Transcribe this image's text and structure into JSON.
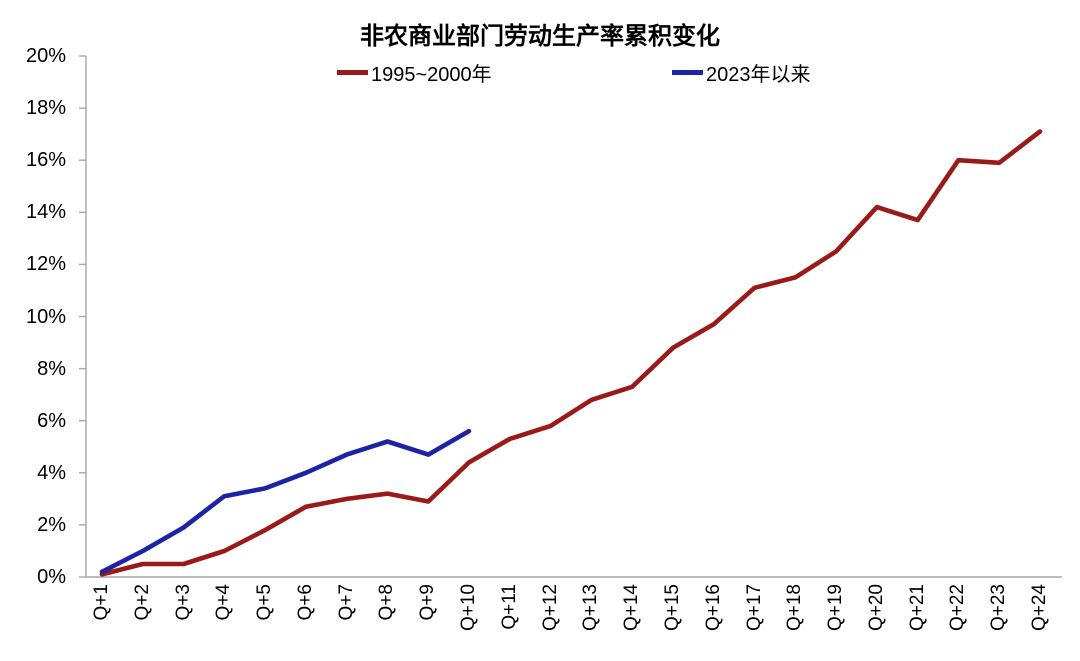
{
  "title": "非农商业部门劳动生产率累积变化",
  "legend": [
    {
      "label": "1995~2000年",
      "color": "#9a1a1a"
    },
    {
      "label": "2023年以来",
      "color": "#1c23a5"
    }
  ],
  "chart_data": {
    "type": "line",
    "title": "非农商业部门劳动生产率累积变化",
    "categories": [
      "Q+1",
      "Q+2",
      "Q+3",
      "Q+4",
      "Q+5",
      "Q+6",
      "Q+7",
      "Q+8",
      "Q+9",
      "Q+10",
      "Q+11",
      "Q+12",
      "Q+13",
      "Q+14",
      "Q+15",
      "Q+16",
      "Q+17",
      "Q+18",
      "Q+19",
      "Q+20",
      "Q+21",
      "Q+22",
      "Q+23",
      "Q+24"
    ],
    "series": [
      {
        "name": "1995~2000年",
        "color": "#9a1a1a",
        "values": [
          0.1,
          0.5,
          0.5,
          1.0,
          1.8,
          2.7,
          3.0,
          3.2,
          2.9,
          4.4,
          5.3,
          5.8,
          6.8,
          7.3,
          8.8,
          9.7,
          11.1,
          11.5,
          12.5,
          14.2,
          13.7,
          16.0,
          15.9,
          17.1
        ]
      },
      {
        "name": "2023年以来",
        "color": "#1c23a5",
        "values": [
          0.2,
          1.0,
          1.9,
          3.1,
          3.4,
          4.0,
          4.7,
          5.2,
          4.7,
          5.6
        ]
      }
    ],
    "xlabel": "",
    "ylabel": "",
    "ylim": [
      0,
      20
    ],
    "ytick_step": 2,
    "ytick_labels": [
      "0%",
      "2%",
      "4%",
      "6%",
      "8%",
      "10%",
      "12%",
      "14%",
      "16%",
      "18%",
      "20%"
    ],
    "x_tick_rotation_deg": 90,
    "grid": false,
    "legend_position": "top",
    "axis_color": "#a6a6a6",
    "text_color": "#000000"
  }
}
